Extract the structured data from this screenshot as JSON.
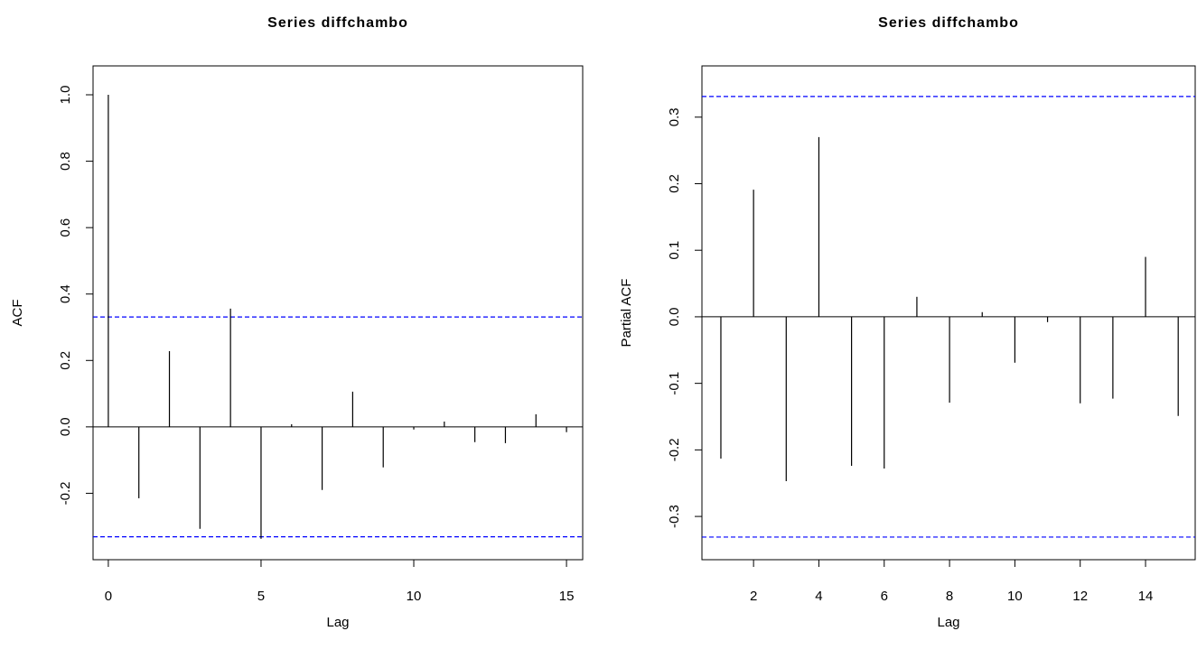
{
  "chart_data": [
    {
      "type": "bar",
      "title": "Series  diffchambo",
      "xlabel": "Lag",
      "ylabel": "ACF",
      "x": [
        0,
        1,
        2,
        3,
        4,
        5,
        6,
        7,
        8,
        9,
        10,
        11,
        12,
        13,
        14,
        15
      ],
      "values": [
        1.0,
        -0.215,
        0.228,
        -0.307,
        0.356,
        -0.337,
        0.008,
        -0.19,
        0.106,
        -0.122,
        -0.008,
        0.016,
        -0.046,
        -0.049,
        0.038,
        -0.016
      ],
      "color": "#000000",
      "ci": [
        0.331,
        -0.331
      ],
      "ci_color": "#0000ff",
      "xlim": [
        -0.5,
        15.53
      ],
      "xticks": [
        0,
        5,
        10,
        15
      ],
      "ylim": [
        -0.4,
        1.087
      ],
      "yticks": [
        -0.2,
        {
          "value": 0,
          "label": "0.0"
        },
        0.2,
        0.4,
        0.6,
        0.8,
        {
          "value": 1,
          "label": "1.0"
        }
      ]
    },
    {
      "type": "bar",
      "title": "Series  diffchambo",
      "xlabel": "Lag",
      "ylabel": "Partial ACF",
      "x": [
        1,
        2,
        3,
        4,
        5,
        6,
        7,
        8,
        9,
        10,
        11,
        12,
        13,
        14,
        15
      ],
      "values": [
        -0.213,
        0.191,
        -0.247,
        0.27,
        -0.224,
        -0.228,
        0.03,
        -0.129,
        0.007,
        -0.069,
        -0.008,
        -0.13,
        -0.123,
        0.09,
        -0.149
      ],
      "color": "#000000",
      "ci": [
        0.331,
        -0.331
      ],
      "ci_color": "#0000ff",
      "xlim": [
        0.42,
        15.52
      ],
      "xticks": [
        2,
        4,
        6,
        8,
        10,
        12,
        14
      ],
      "ylim": [
        -0.365,
        0.377
      ],
      "yticks": [
        -0.3,
        -0.2,
        -0.1,
        {
          "value": 0,
          "label": "0.0"
        },
        0.1,
        0.2,
        0.3
      ]
    }
  ]
}
